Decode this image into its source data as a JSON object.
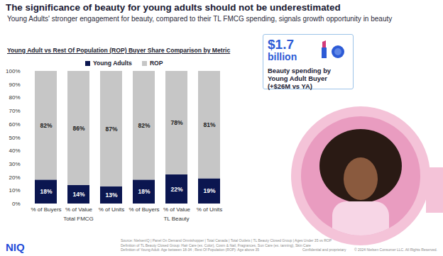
{
  "header": {
    "title": "The significance of beauty for young adults should not be underestimated",
    "subtitle": "Young Adults' stronger engagement for beauty, compared to their TL FMCG spending, signals growth opportunity in beauty"
  },
  "chart_data": {
    "type": "bar",
    "title": "Young Adult vs Rest Of Population (ROP) Buyer Share Comparison by Metric",
    "categories": [
      "% of Buyers",
      "% of Value",
      "% of Units",
      "% of Buyers",
      "% of Value",
      "% of Units"
    ],
    "groups": [
      {
        "name": "Total FMCG",
        "categories": [
          "% of Buyers",
          "% of Value",
          "% of Units"
        ]
      },
      {
        "name": "TL Beauty",
        "categories": [
          "% of Buyers",
          "% of Value",
          "% of Units"
        ]
      }
    ],
    "series": [
      {
        "name": "Young Adults",
        "color": "#0b1650",
        "values": [
          18,
          14,
          13,
          18,
          22,
          19
        ],
        "value_labels": [
          "18%",
          "14%",
          "13%",
          "18%",
          "22%",
          "19%"
        ]
      },
      {
        "name": "ROP",
        "color": "#c6c6c6",
        "values": [
          82,
          86,
          87,
          82,
          78,
          81
        ],
        "value_labels": [
          "82%",
          "86%",
          "87%",
          "82%",
          "78%",
          "81%"
        ]
      }
    ],
    "ylim": [
      0,
      100
    ],
    "yticks": [
      {
        "value": 0,
        "label": "0%"
      },
      {
        "value": 10,
        "label": "10%"
      },
      {
        "value": 20,
        "label": "20%"
      },
      {
        "value": 30,
        "label": "30%"
      },
      {
        "value": 40,
        "label": "40%"
      },
      {
        "value": 50,
        "label": "50%"
      },
      {
        "value": 60,
        "label": "60%"
      },
      {
        "value": 70,
        "label": "70%"
      },
      {
        "value": 80,
        "label": "80%"
      },
      {
        "value": 90,
        "label": "90%"
      },
      {
        "value": 100,
        "label": "100%"
      }
    ],
    "stacked": true,
    "data_labels": true,
    "grid": false,
    "legend": "top"
  },
  "callout": {
    "value": "$1.7",
    "unit": "billion",
    "text": "Beauty spending by Young Adult Buyer (+$26M vs YA)"
  },
  "footer": {
    "logo": "NIQ",
    "notes": [
      "Source: NielsenIQ | Panel On Demand Omnishopper | Total Canada | Total Outlets | TL Beauty Closed Group | Ages Under 35 vs ROP",
      "Definition of TL Beauty Closed Group: Hair Care (ex. Color), Cosm & Nail, Fragrances, Sun Care (ex. tanning), Skin Care",
      "Definition of Young Adult: Age between 18-34 ; Rest Of Population (ROP): Age above 35"
    ],
    "confidential": "Confidential and proprietary",
    "copyright": "© 2024 Nielsen Consumer LLC. All Rights Reserved."
  }
}
